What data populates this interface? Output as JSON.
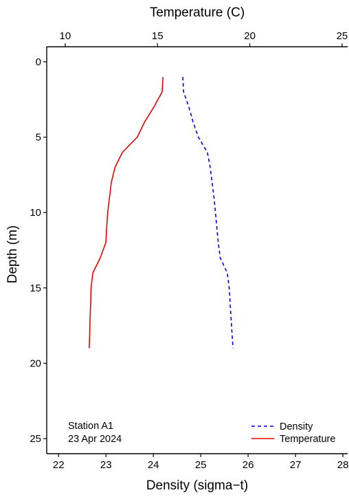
{
  "chart_data": {
    "type": "line",
    "title": "",
    "ylabel": "Depth (m)",
    "ylim": [
      26,
      -1
    ],
    "y_reversed": true,
    "y_ticks": [
      0,
      5,
      10,
      15,
      20,
      25
    ],
    "x_bottom": {
      "label": "Density (sigma−t)",
      "lim": [
        21.75,
        28.1
      ],
      "ticks": [
        22,
        23,
        24,
        25,
        26,
        27,
        28
      ]
    },
    "x_top": {
      "label": "Temperature (C)",
      "lim": [
        9,
        25.3
      ],
      "ticks": [
        10,
        15,
        20,
        25
      ]
    },
    "grid": false,
    "legend_position": "bottom-right",
    "annotation": [
      "Station A1",
      "23 Apr 2024"
    ],
    "series": [
      {
        "name": "Density",
        "axis": "bottom",
        "style": "dashed",
        "color": "#0000ee",
        "points": [
          {
            "x": 24.62,
            "y": 1
          },
          {
            "x": 24.64,
            "y": 2
          },
          {
            "x": 24.75,
            "y": 3
          },
          {
            "x": 24.84,
            "y": 4
          },
          {
            "x": 24.95,
            "y": 5
          },
          {
            "x": 25.14,
            "y": 6
          },
          {
            "x": 25.2,
            "y": 7
          },
          {
            "x": 25.24,
            "y": 8
          },
          {
            "x": 25.28,
            "y": 9
          },
          {
            "x": 25.31,
            "y": 10
          },
          {
            "x": 25.34,
            "y": 11
          },
          {
            "x": 25.37,
            "y": 12
          },
          {
            "x": 25.41,
            "y": 13
          },
          {
            "x": 25.56,
            "y": 14
          },
          {
            "x": 25.6,
            "y": 15
          },
          {
            "x": 25.62,
            "y": 16
          },
          {
            "x": 25.64,
            "y": 17
          },
          {
            "x": 25.66,
            "y": 18
          },
          {
            "x": 25.68,
            "y": 19
          }
        ]
      },
      {
        "name": "Temperature",
        "axis": "top",
        "style": "solid",
        "color": "#ee0000",
        "points": [
          {
            "x": 15.3,
            "y": 1
          },
          {
            "x": 15.25,
            "y": 2
          },
          {
            "x": 14.8,
            "y": 3
          },
          {
            "x": 14.3,
            "y": 4
          },
          {
            "x": 13.9,
            "y": 5
          },
          {
            "x": 13.1,
            "y": 6
          },
          {
            "x": 12.7,
            "y": 7
          },
          {
            "x": 12.5,
            "y": 8
          },
          {
            "x": 12.4,
            "y": 9
          },
          {
            "x": 12.3,
            "y": 10
          },
          {
            "x": 12.25,
            "y": 11
          },
          {
            "x": 12.2,
            "y": 12
          },
          {
            "x": 11.9,
            "y": 13
          },
          {
            "x": 11.5,
            "y": 14
          },
          {
            "x": 11.4,
            "y": 15
          },
          {
            "x": 11.38,
            "y": 16
          },
          {
            "x": 11.35,
            "y": 17
          },
          {
            "x": 11.33,
            "y": 18
          },
          {
            "x": 11.3,
            "y": 19
          }
        ]
      }
    ]
  }
}
